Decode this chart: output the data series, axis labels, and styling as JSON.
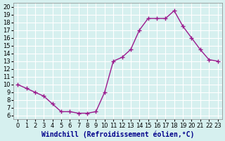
{
  "x": [
    0,
    1,
    2,
    3,
    4,
    5,
    6,
    7,
    8,
    9,
    10,
    11,
    12,
    13,
    14,
    15,
    16,
    17,
    18,
    19,
    20,
    21,
    22,
    23
  ],
  "y": [
    10,
    9.5,
    9,
    8.5,
    7.5,
    6.5,
    6.5,
    6.3,
    6.3,
    6.5,
    9,
    13,
    13.5,
    14.5,
    17,
    18.5,
    18.5,
    18.5,
    19.5,
    17.5,
    16,
    14.5,
    13.2,
    13
  ],
  "line_color": "#9b1b8e",
  "marker": "+",
  "markersize": 5,
  "linewidth": 1.0,
  "background_color": "#d6f0ef",
  "grid_color": "#ffffff",
  "xlabel": "Windchill (Refroidissement éolien,°C)",
  "xlabel_fontsize": 7,
  "tick_fontsize": 6,
  "xlim": [
    -0.5,
    23.5
  ],
  "ylim": [
    5.5,
    20.5
  ],
  "yticks": [
    6,
    7,
    8,
    9,
    10,
    11,
    12,
    13,
    14,
    15,
    16,
    17,
    18,
    19,
    20
  ],
  "xticks": [
    0,
    1,
    2,
    3,
    4,
    5,
    6,
    7,
    8,
    9,
    10,
    11,
    12,
    13,
    14,
    15,
    16,
    17,
    18,
    19,
    20,
    21,
    22,
    23
  ]
}
